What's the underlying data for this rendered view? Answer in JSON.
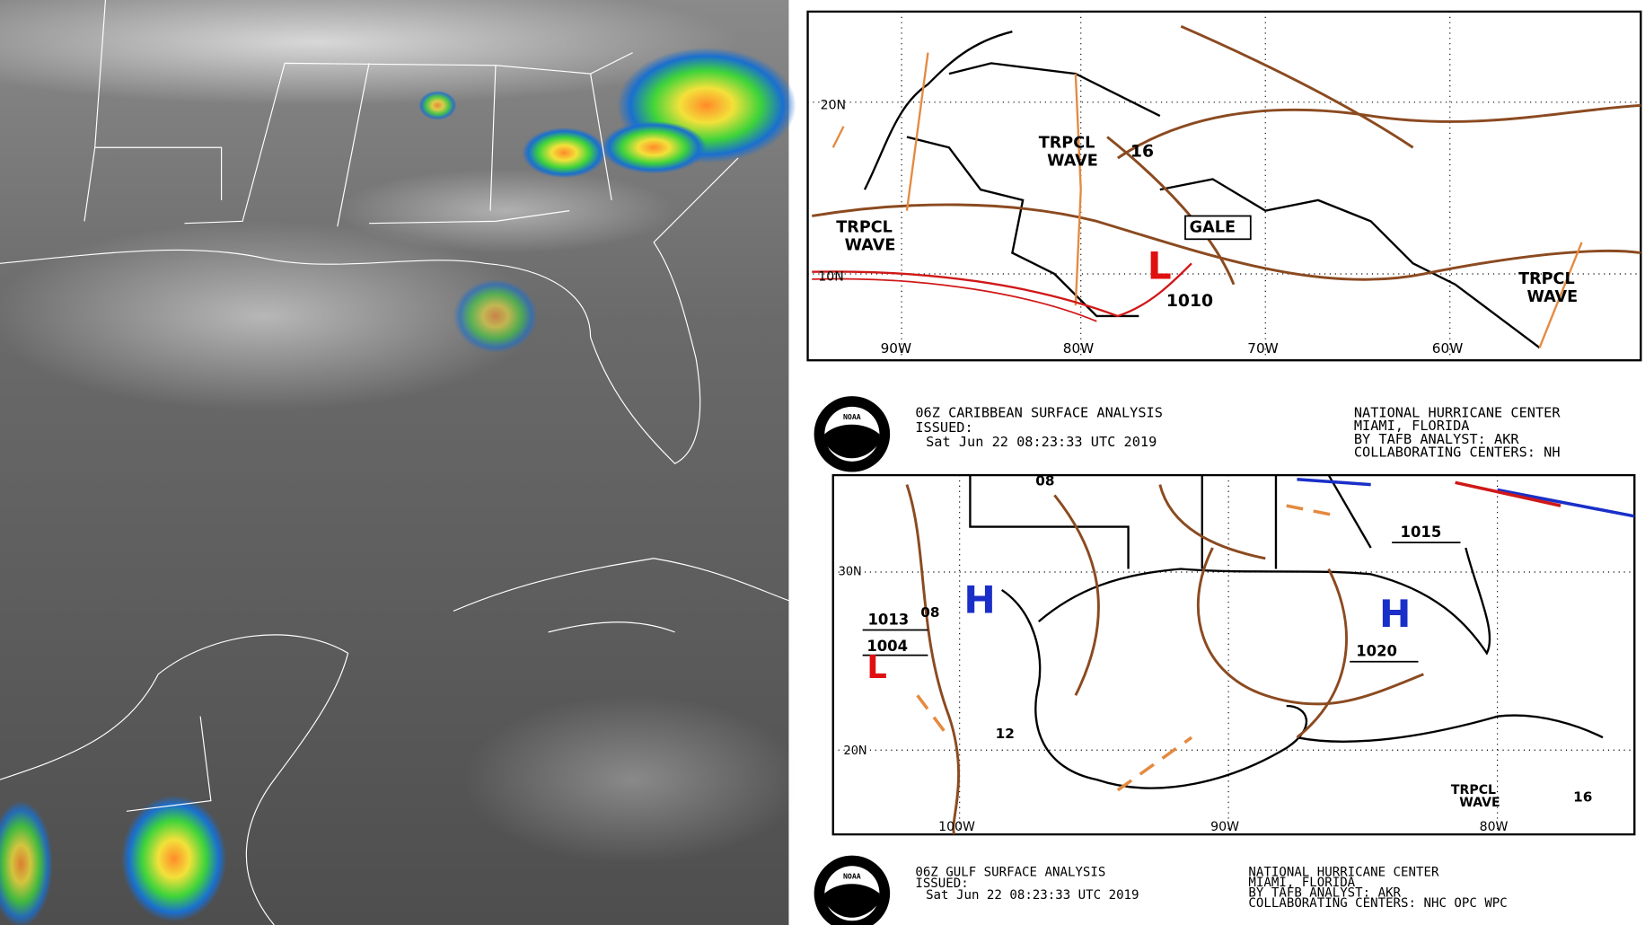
{
  "caribbean_map": {
    "labels": [
      "20N",
      "10N",
      "90W",
      "80W",
      "70W",
      "60W",
      "TRPCL",
      "WAVE",
      "16",
      "GALE",
      "1010",
      "L",
      "TRPCL",
      "WAVE",
      "TRPCL",
      "WAVE"
    ],
    "header": {
      "logo": "NOAA",
      "title": "06Z CARIBBEAN SURFACE ANALYSIS",
      "issued": "ISSUED:",
      "time": "Sat Jun 22 08:23:33 UTC 2019",
      "center": "NATIONAL HURRICANE CENTER",
      "city": "MIAMI, FLORIDA",
      "analyst": "BY TAFB ANALYST: AKR",
      "collab": "COLLABORATING CENTERS: NH"
    }
  },
  "gulf_map": {
    "labels": [
      "30N",
      "20N",
      "100W",
      "90W",
      "80W",
      "08",
      "08",
      "1015",
      "1020",
      "1013",
      "1004",
      "12",
      "16",
      "TRPCL",
      "WAVE",
      "H",
      "H",
      "L"
    ],
    "header": {
      "logo": "NOAA",
      "title": "06Z GULF SURFACE ANALYSIS",
      "issued": "ISSUED:",
      "time": "Sat Jun 22 08:23:33 UTC 2019",
      "center": "NATIONAL HURRICANE CENTER",
      "city": "MIAMI, FLORIDA",
      "analyst": "BY TAFB ANALYST: AKR",
      "collab": "COLLABORATING CENTERS: NHC OPC WPC"
    }
  }
}
